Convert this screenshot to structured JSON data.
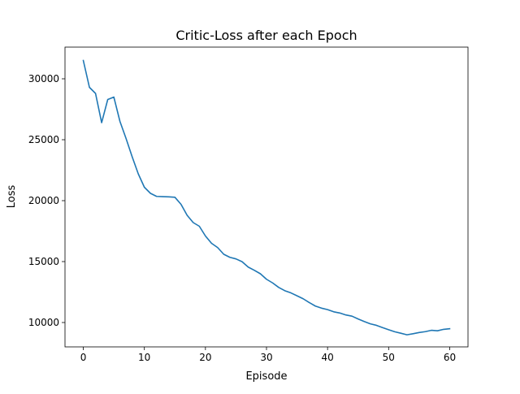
{
  "chart_data": {
    "type": "line",
    "title": "Critic-Loss after each Epoch",
    "xlabel": "Episode",
    "ylabel": "Loss",
    "xlim": [
      -3,
      63
    ],
    "ylim": [
      8000,
      32600
    ],
    "xticks": [
      0,
      10,
      20,
      30,
      40,
      50,
      60
    ],
    "yticks": [
      10000,
      15000,
      20000,
      25000,
      30000
    ],
    "grid": false,
    "line_color": "#1f77b4",
    "series": [
      {
        "x": [
          0,
          1,
          2,
          3,
          4,
          5,
          6,
          7,
          8,
          9,
          10,
          11,
          12,
          13,
          14,
          15,
          16,
          17,
          18,
          19,
          20,
          21,
          22,
          23,
          24,
          25,
          26,
          27,
          28,
          29,
          30,
          31,
          32,
          33,
          34,
          35,
          36,
          37,
          38,
          39,
          40,
          41,
          42,
          43,
          44,
          45,
          46,
          47,
          48,
          49,
          50,
          51,
          52,
          53,
          54,
          55,
          56,
          57,
          58,
          59,
          60
        ],
        "y": [
          31500,
          29300,
          28800,
          26400,
          28300,
          28500,
          26500,
          25100,
          23600,
          22200,
          21100,
          20600,
          20350,
          20330,
          20310,
          20280,
          19700,
          18800,
          18200,
          17900,
          17100,
          16500,
          16150,
          15600,
          15350,
          15220,
          14990,
          14550,
          14290,
          14000,
          13550,
          13250,
          12880,
          12610,
          12430,
          12190,
          11950,
          11640,
          11350,
          11180,
          11060,
          10880,
          10780,
          10620,
          10520,
          10290,
          10080,
          9890,
          9770,
          9580,
          9410,
          9240,
          9120,
          8990,
          9080,
          9180,
          9250,
          9360,
          9320,
          9440,
          9490
        ]
      }
    ]
  }
}
